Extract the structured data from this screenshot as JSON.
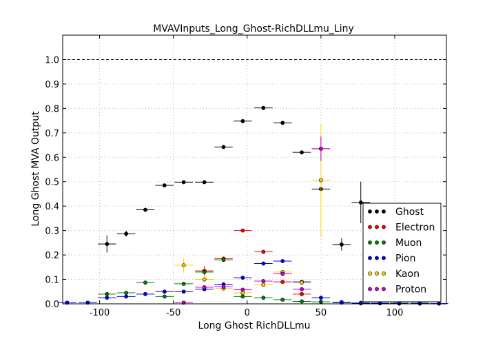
{
  "chart_data": {
    "type": "scatter",
    "title": "MVAVInputs_Long_Ghost-RichDLLmu_Liny",
    "xlabel": "Long Ghost RichDLLmu",
    "ylabel": "Long Ghost MVA Output",
    "xlim": [
      -125,
      135
    ],
    "ylim": [
      0.0,
      1.1
    ],
    "x_ticks": [
      -100,
      -50,
      0,
      50,
      100
    ],
    "y_ticks": [
      0.0,
      0.1,
      0.2,
      0.3,
      0.4,
      0.5,
      0.6,
      0.7,
      0.8,
      0.9,
      1.0
    ],
    "grid": true,
    "reference_line_y": 1.0,
    "x_bin_half_width": 6.2,
    "legend_position": "lower-right",
    "series": [
      {
        "name": "Ghost",
        "color": "#000000",
        "points": [
          {
            "x": -95,
            "y": 0.245,
            "yerr": 0.035
          },
          {
            "x": -82,
            "y": 0.287,
            "yerr": 0.012
          },
          {
            "x": -69,
            "y": 0.385,
            "yerr": 0.004
          },
          {
            "x": -56,
            "y": 0.485,
            "yerr": 0.003
          },
          {
            "x": -43,
            "y": 0.498,
            "yerr": 0.003
          },
          {
            "x": -29,
            "y": 0.498,
            "yerr": 0.003
          },
          {
            "x": -16,
            "y": 0.642,
            "yerr": 0.003
          },
          {
            "x": -3,
            "y": 0.748,
            "yerr": 0.003
          },
          {
            "x": 11,
            "y": 0.802,
            "yerr": 0.003
          },
          {
            "x": 24,
            "y": 0.741,
            "yerr": 0.003
          },
          {
            "x": 37,
            "y": 0.62,
            "yerr": 0.004
          },
          {
            "x": 50,
            "y": 0.47,
            "yerr": 0.012
          },
          {
            "x": 64,
            "y": 0.243,
            "yerr": 0.025
          },
          {
            "x": 77,
            "y": 0.415,
            "yerr": 0.085
          }
        ]
      },
      {
        "name": "Electron",
        "color": "#ff0000",
        "points": [
          {
            "x": -29,
            "y": 0.135,
            "yerr": 0.02
          },
          {
            "x": -16,
            "y": 0.185,
            "yerr": 0.005
          },
          {
            "x": -3,
            "y": 0.3,
            "yerr": 0.004
          },
          {
            "x": 11,
            "y": 0.213,
            "yerr": 0.004
          },
          {
            "x": 24,
            "y": 0.09,
            "yerr": 0.004
          },
          {
            "x": 37,
            "y": 0.04,
            "yerr": 0.005
          },
          {
            "x": 50,
            "y": 0.635,
            "yerr": 0.05
          }
        ]
      },
      {
        "name": "Muon",
        "color": "#008000",
        "points": [
          {
            "x": -95,
            "y": 0.04,
            "yerr": 0.005
          },
          {
            "x": -82,
            "y": 0.045,
            "yerr": 0.004
          },
          {
            "x": -69,
            "y": 0.087,
            "yerr": 0.004
          },
          {
            "x": -56,
            "y": 0.03,
            "yerr": 0.003
          },
          {
            "x": -43,
            "y": 0.082,
            "yerr": 0.003
          },
          {
            "x": -29,
            "y": 0.13,
            "yerr": 0.003
          },
          {
            "x": -16,
            "y": 0.18,
            "yerr": 0.003
          },
          {
            "x": -3,
            "y": 0.03,
            "yerr": 0.002
          },
          {
            "x": 11,
            "y": 0.025,
            "yerr": 0.002
          },
          {
            "x": 24,
            "y": 0.017,
            "yerr": 0.002
          },
          {
            "x": 37,
            "y": 0.01,
            "yerr": 0.002
          },
          {
            "x": 50,
            "y": 0.008,
            "yerr": 0.002
          },
          {
            "x": 64,
            "y": 0.005,
            "yerr": 0.002
          },
          {
            "x": 77,
            "y": 0.004,
            "yerr": 0.002
          },
          {
            "x": 90,
            "y": 0.003,
            "yerr": 0.002
          },
          {
            "x": 103,
            "y": 0.003,
            "yerr": 0.002
          },
          {
            "x": 117,
            "y": 0.003,
            "yerr": 0.002
          }
        ]
      },
      {
        "name": "Pion",
        "color": "#0000ff",
        "points": [
          {
            "x": -122,
            "y": 0.005,
            "yerr": 0.002
          },
          {
            "x": -108,
            "y": 0.005,
            "yerr": 0.002
          },
          {
            "x": -95,
            "y": 0.025,
            "yerr": 0.003
          },
          {
            "x": -82,
            "y": 0.03,
            "yerr": 0.002
          },
          {
            "x": -69,
            "y": 0.04,
            "yerr": 0.002
          },
          {
            "x": -56,
            "y": 0.05,
            "yerr": 0.002
          },
          {
            "x": -43,
            "y": 0.05,
            "yerr": 0.002
          },
          {
            "x": -29,
            "y": 0.06,
            "yerr": 0.002
          },
          {
            "x": -16,
            "y": 0.08,
            "yerr": 0.002
          },
          {
            "x": -3,
            "y": 0.107,
            "yerr": 0.002
          },
          {
            "x": 11,
            "y": 0.165,
            "yerr": 0.003
          },
          {
            "x": 24,
            "y": 0.175,
            "yerr": 0.003
          },
          {
            "x": 37,
            "y": 0.09,
            "yerr": 0.003
          },
          {
            "x": 50,
            "y": 0.025,
            "yerr": 0.003
          },
          {
            "x": 64,
            "y": 0.007,
            "yerr": 0.002
          },
          {
            "x": 77,
            "y": 0.002,
            "yerr": 0.002
          },
          {
            "x": 90,
            "y": 0.002,
            "yerr": 0.002
          },
          {
            "x": 103,
            "y": 0.001,
            "yerr": 0.002
          },
          {
            "x": 117,
            "y": 0.001,
            "yerr": 0.002
          },
          {
            "x": 130,
            "y": 0.001,
            "yerr": 0.002
          }
        ]
      },
      {
        "name": "Kaon",
        "color": "#ffcc00",
        "points": [
          {
            "x": -43,
            "y": 0.158,
            "yerr": 0.03
          },
          {
            "x": -29,
            "y": 0.1,
            "yerr": 0.012
          },
          {
            "x": -16,
            "y": 0.063,
            "yerr": 0.005
          },
          {
            "x": -3,
            "y": 0.045,
            "yerr": 0.004
          },
          {
            "x": 11,
            "y": 0.078,
            "yerr": 0.004
          },
          {
            "x": 24,
            "y": 0.13,
            "yerr": 0.005
          },
          {
            "x": 37,
            "y": 0.087,
            "yerr": 0.006
          },
          {
            "x": 50,
            "y": 0.506,
            "yerr": 0.23
          }
        ]
      },
      {
        "name": "Proton",
        "color": "#cc00cc",
        "points": [
          {
            "x": -43,
            "y": 0.005,
            "yerr": 0.003
          },
          {
            "x": -29,
            "y": 0.068,
            "yerr": 0.005
          },
          {
            "x": -16,
            "y": 0.07,
            "yerr": 0.004
          },
          {
            "x": -3,
            "y": 0.058,
            "yerr": 0.003
          },
          {
            "x": 11,
            "y": 0.093,
            "yerr": 0.003
          },
          {
            "x": 24,
            "y": 0.123,
            "yerr": 0.004
          },
          {
            "x": 37,
            "y": 0.06,
            "yerr": 0.006
          },
          {
            "x": 50,
            "y": 0.635,
            "yerr": 0.05
          }
        ]
      }
    ]
  }
}
